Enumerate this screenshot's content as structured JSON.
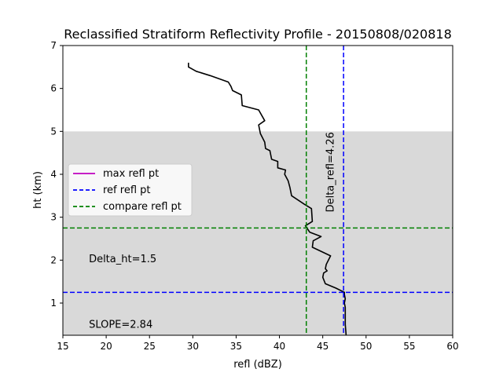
{
  "chart_data": {
    "type": "line",
    "title": "Reclassified Stratiform Reflectivity Profile - 20150808/020818",
    "xlabel": "refl (dBZ)",
    "ylabel": "ht (km)",
    "xlim": [
      15,
      60
    ],
    "ylim": [
      0.25,
      7
    ],
    "xticks": [
      "15",
      "20",
      "25",
      "30",
      "35",
      "40",
      "45",
      "50",
      "55",
      "60"
    ],
    "yticks": [
      "1",
      "2",
      "3",
      "4",
      "5",
      "6",
      "7"
    ],
    "grid": false,
    "shaded_band": {
      "y_from": 0.25,
      "y_to": 5.0,
      "color": "#d9d9d9"
    },
    "profile": {
      "color": "#000000",
      "x": [
        47.7,
        47.6,
        47.6,
        47.6,
        47.5,
        47.6,
        47.5,
        47.5,
        46.5,
        45.3,
        45.0,
        45.1,
        45.5,
        45.3,
        45.4,
        45.9,
        43.8,
        43.9,
        44.8,
        43.5,
        43.0,
        43.8,
        43.7,
        42.9,
        41.4,
        41.2,
        41.0,
        40.6,
        40.7,
        39.8,
        39.8,
        39.1,
        38.9,
        38.4,
        38.3,
        37.8,
        37.6,
        38.3,
        37.6,
        35.7,
        35.6,
        34.6,
        34.4,
        34.1,
        32.0,
        30.4,
        29.5,
        29.5
      ],
      "y": [
        0.25,
        0.5,
        0.75,
        0.9,
        1.0,
        1.1,
        1.2,
        1.25,
        1.35,
        1.45,
        1.6,
        1.7,
        1.75,
        1.8,
        1.9,
        2.1,
        2.3,
        2.45,
        2.55,
        2.65,
        2.8,
        2.9,
        3.2,
        3.3,
        3.5,
        3.7,
        3.85,
        4.0,
        4.1,
        4.15,
        4.3,
        4.35,
        4.55,
        4.6,
        4.75,
        4.95,
        5.15,
        5.25,
        5.5,
        5.6,
        5.85,
        5.95,
        6.05,
        6.15,
        6.3,
        6.4,
        6.5,
        6.6
      ]
    },
    "lines": [
      {
        "name": "max refl pt",
        "orientation": "none",
        "color": "#bf00bf",
        "style": "solid"
      },
      {
        "name": "ref refl pt",
        "orientation": "vertical",
        "value": 47.4,
        "color": "#0000ff",
        "style": "dashed"
      },
      {
        "name": "ref refl pt",
        "orientation": "horizontal",
        "value": 1.25,
        "color": "#0000ff",
        "style": "dashed"
      },
      {
        "name": "compare refl pt",
        "orientation": "vertical",
        "value": 43.1,
        "color": "#008000",
        "style": "dashed"
      },
      {
        "name": "compare refl pt",
        "orientation": "horizontal",
        "value": 2.75,
        "color": "#008000",
        "style": "dashed"
      }
    ],
    "legend": {
      "placement": "center-left",
      "entries": [
        {
          "label": "max refl pt",
          "color": "#bf00bf",
          "style": "solid"
        },
        {
          "label": "ref refl pt",
          "color": "#0000ff",
          "style": "dashed"
        },
        {
          "label": "compare refl pt",
          "color": "#008000",
          "style": "dashed"
        }
      ]
    },
    "annotations": [
      {
        "name": "delta-ht-annotation",
        "text": "Delta_ht=1.5",
        "x": 18.0,
        "y": 2.02,
        "rotate": false
      },
      {
        "name": "slope-annotation",
        "text": "SLOPE=2.84",
        "x": 18.0,
        "y": 0.5,
        "rotate": false
      },
      {
        "name": "delta-refl-annotation",
        "text": "Delta_refl=4.26",
        "x": 45.8,
        "y": 4.05,
        "rotate": true
      }
    ]
  }
}
